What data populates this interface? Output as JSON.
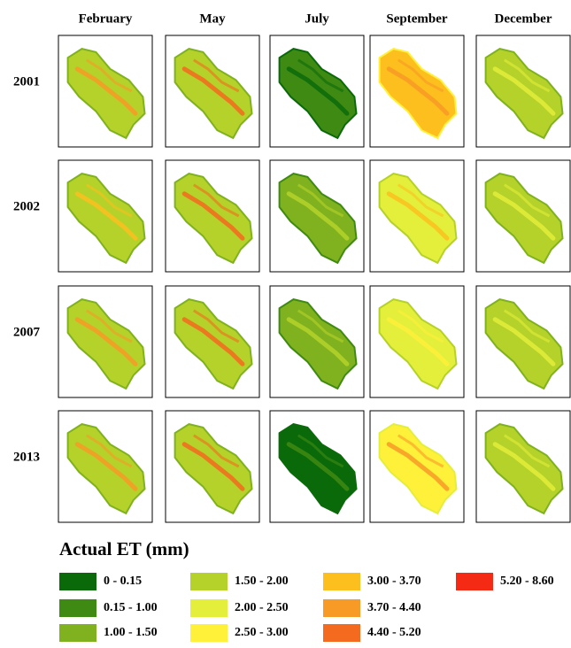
{
  "columns": [
    "February",
    "May",
    "July",
    "September",
    "December"
  ],
  "rows": [
    "2001",
    "2002",
    "2007",
    "2013"
  ],
  "legend": {
    "title": "Actual ET (mm)",
    "items": [
      {
        "label": "0 - 0.15",
        "color": "#0a6a0a"
      },
      {
        "label": "0.15 - 1.00",
        "color": "#3f8a12"
      },
      {
        "label": "1.00 - 1.50",
        "color": "#7fb21e"
      },
      {
        "label": "1.50 - 2.00",
        "color": "#b5d22a"
      },
      {
        "label": "2.00 - 2.50",
        "color": "#e3ef3a"
      },
      {
        "label": "2.50 - 3.00",
        "color": "#fff03a"
      },
      {
        "label": "3.00 - 3.70",
        "color": "#fcbf1e"
      },
      {
        "label": "3.70 - 4.40",
        "color": "#f89a26"
      },
      {
        "label": "4.40 - 5.20",
        "color": "#f46a1e"
      },
      {
        "label": "5.20 - 8.60",
        "color": "#f52a14"
      }
    ]
  }
}
